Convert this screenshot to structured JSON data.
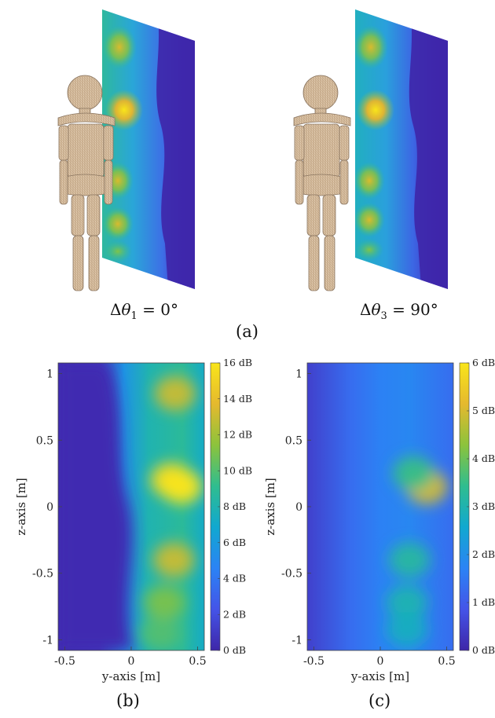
{
  "figure": {
    "top": {
      "left_annotation": {
        "prefix": "Δ",
        "symbol": "θ",
        "sub": "1",
        "rest": " = 0°"
      },
      "right_annotation": {
        "prefix": "Δ",
        "symbol": "θ",
        "sub": "3",
        "rest": " = 90°"
      },
      "label": "(a)"
    },
    "label_b": "(b)",
    "label_c": "(c)"
  },
  "colors": {
    "colormap": [
      "#3e26a8",
      "#4454e8",
      "#2b83f5",
      "#11a8d0",
      "#2fbd8f",
      "#8cc33c",
      "#e5b92e",
      "#f9e51a"
    ],
    "mannequin": "#dcc3a3",
    "mannequin_line": "#8a7560"
  },
  "chart_data": [
    {
      "type": "heatmap",
      "panel": "(b)",
      "xlabel": "y-axis [m]",
      "ylabel": "z-axis [m]",
      "xlim": [
        -0.55,
        0.55
      ],
      "ylim": [
        -1.08,
        1.08
      ],
      "xticks": [
        -0.5,
        0,
        0.5
      ],
      "xtick_labels": [
        "-0.5",
        "0",
        "0.5"
      ],
      "yticks": [
        1,
        0.5,
        0,
        -0.5,
        -1
      ],
      "ytick_labels": [
        "1",
        "0.5",
        "0",
        "-0.5",
        "-1"
      ],
      "colorbar": {
        "min": 0,
        "max": 16,
        "ticks": [
          16,
          14,
          12,
          10,
          8,
          6,
          4,
          2,
          0
        ],
        "tick_labels": [
          "16 dB",
          "14 dB",
          "12 dB",
          "10 dB",
          "8 dB",
          "6 dB",
          "4 dB",
          "2 dB",
          "0 dB"
        ]
      },
      "hotspots_db": [
        {
          "y": 0.33,
          "z": 0.85,
          "value": 13
        },
        {
          "y": 0.3,
          "z": 0.2,
          "value": 15.5
        },
        {
          "y": 0.38,
          "z": 0.15,
          "value": 16
        },
        {
          "y": 0.32,
          "z": -0.4,
          "value": 13
        },
        {
          "y": 0.25,
          "z": -0.72,
          "value": 11
        },
        {
          "y": 0.22,
          "z": -0.95,
          "value": 10
        }
      ]
    },
    {
      "type": "heatmap",
      "panel": "(c)",
      "xlabel": "y-axis [m]",
      "ylabel": "z-axis [m]",
      "xlim": [
        -0.55,
        0.55
      ],
      "ylim": [
        -1.08,
        1.08
      ],
      "xticks": [
        -0.5,
        0,
        0.5
      ],
      "xtick_labels": [
        "-0.5",
        "0",
        "0.5"
      ],
      "yticks": [
        1,
        0.5,
        0,
        -0.5,
        -1
      ],
      "ytick_labels": [
        "1",
        "0.5",
        "0",
        "-0.5",
        "-1"
      ],
      "colorbar": {
        "min": 0,
        "max": 6,
        "ticks": [
          6,
          5,
          4,
          3,
          2,
          1,
          0
        ],
        "tick_labels": [
          "6 dB",
          "5 dB",
          "4 dB",
          "3 dB",
          "2 dB",
          "1 dB",
          "0 dB"
        ]
      },
      "hotspots_db": [
        {
          "y": 0.35,
          "z": 0.15,
          "value": 5
        },
        {
          "y": 0.25,
          "z": 0.25,
          "value": 3.5
        },
        {
          "y": 0.22,
          "z": -0.4,
          "value": 3.2
        },
        {
          "y": 0.2,
          "z": -0.72,
          "value": 3
        },
        {
          "y": 0.2,
          "z": -0.92,
          "value": 2.8
        }
      ]
    }
  ]
}
